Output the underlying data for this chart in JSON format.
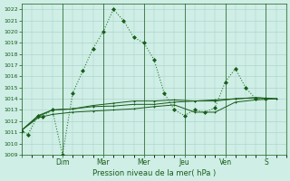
{
  "title": "Pression niveau de la mer( hPa )",
  "bg_color": "#ceeee6",
  "grid_color": "#aacfc8",
  "line_color_dark": "#1a5c1a",
  "line_color_med": "#2d7d2d",
  "ylim": [
    1009,
    1022.5
  ],
  "yticks": [
    1009,
    1010,
    1011,
    1012,
    1013,
    1014,
    1015,
    1016,
    1017,
    1018,
    1019,
    1020,
    1021,
    1022
  ],
  "xtick_labels": [
    "",
    "Dim",
    "Mar",
    "Mer",
    "Jeu",
    "Ven",
    "S"
  ],
  "xtick_positions": [
    0,
    2,
    4,
    6,
    8,
    10,
    12
  ],
  "xlim": [
    0,
    13
  ],
  "series1_x": [
    0,
    0.3,
    0.8,
    1.0,
    1.5,
    2.0,
    2.5,
    3.0,
    3.5,
    4.0,
    4.5,
    5.0,
    5.5,
    6.0,
    6.5,
    7.0,
    7.5,
    8.0,
    8.5,
    9.0,
    9.5,
    10.0,
    10.5,
    11.0,
    11.5,
    12.0
  ],
  "series1_y": [
    1011.1,
    1010.8,
    1012.5,
    1012.4,
    1013.0,
    1009.0,
    1014.5,
    1016.5,
    1018.5,
    1020.0,
    1022.0,
    1021.0,
    1019.5,
    1019.0,
    1017.5,
    1014.5,
    1013.0,
    1012.5,
    1013.0,
    1012.8,
    1013.2,
    1015.5,
    1016.7,
    1015.0,
    1014.0,
    1014.0
  ],
  "series2_x": [
    0,
    0.8,
    1.5,
    2.5,
    3.5,
    4.5,
    5.5,
    6.5,
    7.5,
    8.5,
    9.5,
    10.5,
    11.5,
    12.5
  ],
  "series2_y": [
    1011.2,
    1012.4,
    1013.0,
    1013.1,
    1013.3,
    1013.35,
    1013.5,
    1013.5,
    1013.7,
    1013.8,
    1013.8,
    1014.0,
    1014.1,
    1014.0
  ],
  "series3_x": [
    0,
    0.8,
    1.5,
    2.5,
    3.5,
    4.5,
    5.5,
    6.5,
    7.5,
    8.5,
    9.5,
    10.5,
    11.5,
    12.5
  ],
  "series3_y": [
    1011.2,
    1012.3,
    1012.6,
    1012.8,
    1012.9,
    1013.0,
    1013.1,
    1013.3,
    1013.45,
    1012.8,
    1012.8,
    1013.7,
    1013.9,
    1014.0
  ],
  "series4_x": [
    0,
    0.8,
    1.5,
    2.5,
    3.5,
    4.5,
    5.5,
    6.5,
    7.5,
    8.5,
    9.5,
    10.5,
    11.5,
    12.5
  ],
  "series4_y": [
    1011.2,
    1012.5,
    1013.0,
    1013.1,
    1013.4,
    1013.6,
    1013.8,
    1013.8,
    1013.9,
    1013.8,
    1013.9,
    1014.0,
    1014.1,
    1014.0
  ]
}
